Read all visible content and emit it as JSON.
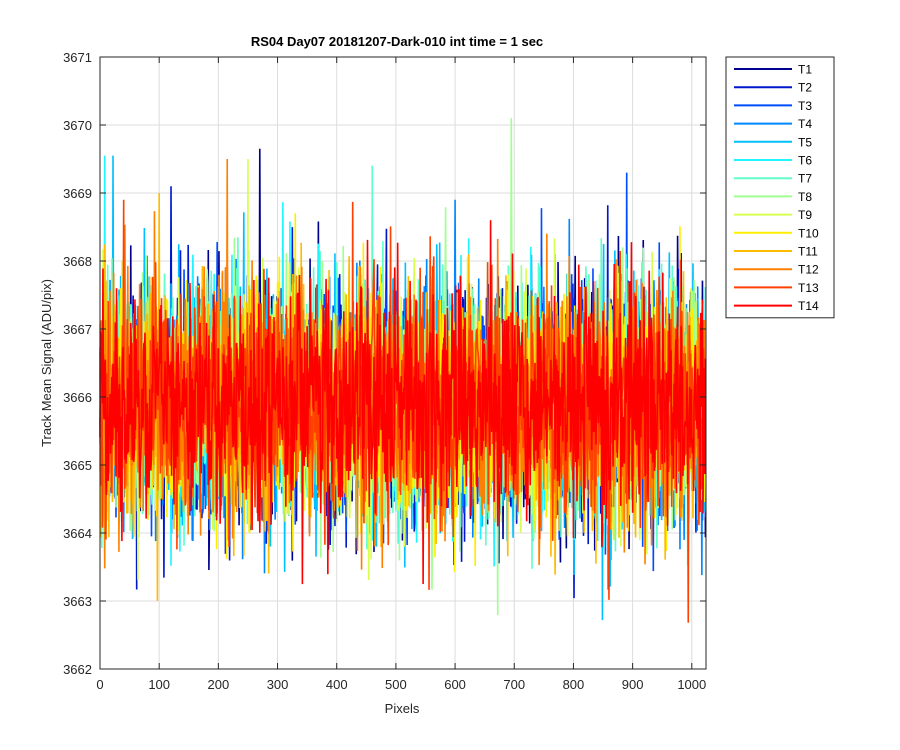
{
  "chart_data": {
    "type": "line",
    "title": "RS04 Day07 20181207-Dark-010 int time = 1 sec",
    "xlabel": "Pixels",
    "ylabel": "Track Mean Signal (ADU/pix)",
    "xlim": [
      0,
      1024
    ],
    "ylim": [
      3662,
      3671
    ],
    "xticks": [
      "0",
      "100",
      "200",
      "300",
      "400",
      "500",
      "600",
      "700",
      "800",
      "900",
      "1000"
    ],
    "yticks": [
      "3662",
      "3663",
      "3664",
      "3665",
      "3666",
      "3667",
      "3668",
      "3669",
      "3670",
      "3671"
    ],
    "grid": true,
    "legend_position": "outside-top-right",
    "noise": {
      "mean": 3665.9,
      "sigma": 0.85,
      "points_per_series": 1024
    },
    "series": [
      {
        "name": "T1",
        "color": "#00008f",
        "peak": {
          "x": 270,
          "y": 3669.65
        }
      },
      {
        "name": "T2",
        "color": "#0018cc",
        "peak": {
          "x": 120,
          "y": 3669.1
        }
      },
      {
        "name": "T3",
        "color": "#004cff",
        "peak": {
          "x": 890,
          "y": 3669.3
        }
      },
      {
        "name": "T4",
        "color": "#0088ff",
        "peak": {
          "x": 600,
          "y": 3668.9
        }
      },
      {
        "name": "T5",
        "color": "#00c0ff",
        "peak": {
          "x": 22,
          "y": 3669.55
        }
      },
      {
        "name": "T6",
        "color": "#20f5ff",
        "peak": {
          "x": 8,
          "y": 3669.55
        }
      },
      {
        "name": "T7",
        "color": "#60ffc8",
        "peak": {
          "x": 460,
          "y": 3669.4
        }
      },
      {
        "name": "T8",
        "color": "#a0ff90",
        "peak": {
          "x": 695,
          "y": 3670.1
        }
      },
      {
        "name": "T9",
        "color": "#d8ff50",
        "peak": {
          "x": 250,
          "y": 3669.5
        }
      },
      {
        "name": "T10",
        "color": "#ffee00",
        "peak": {
          "x": 330,
          "y": 3668.7
        }
      },
      {
        "name": "T11",
        "color": "#ffbb00",
        "peak": {
          "x": 100,
          "y": 3669.0
        }
      },
      {
        "name": "T12",
        "color": "#ff8000",
        "peak": {
          "x": 215,
          "y": 3669.5
        }
      },
      {
        "name": "T13",
        "color": "#ff4000",
        "peak": {
          "x": 40,
          "y": 3668.9
        }
      },
      {
        "name": "T14",
        "color": "#ff0000",
        "peak": {
          "x": 660,
          "y": 3668.6
        }
      }
    ]
  }
}
